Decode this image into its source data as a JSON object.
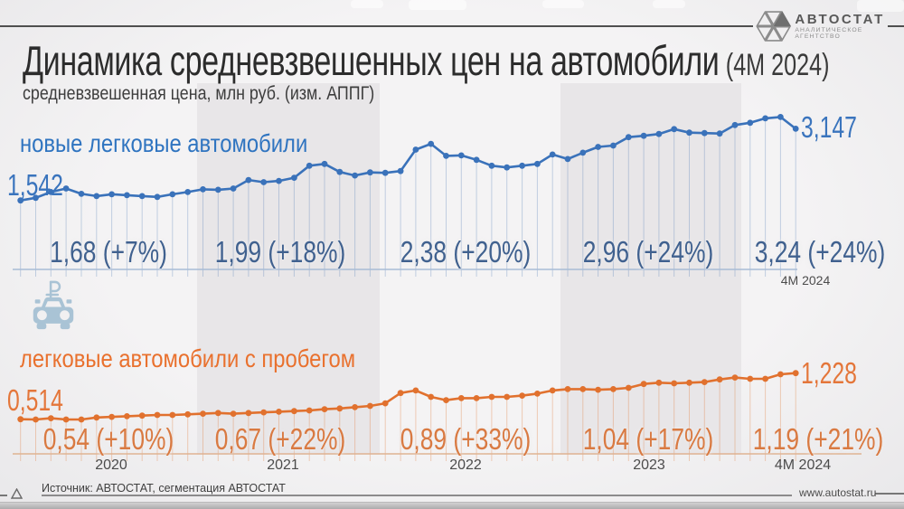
{
  "header": {
    "title": "Динамика средневзвешенных цен на автомобили",
    "title_suffix": "(4М 2024)",
    "subtitle": "средневзвешенная цена, млн руб. (изм. АППГ)",
    "logo": {
      "name": "АВТОСТАТ",
      "tagline": "АНАЛИТИЧЕСКОЕ АГЕНТСТВО"
    }
  },
  "footer": {
    "source": "Источник: АВТОСТАТ, сегментация АВТОСТАТ",
    "site": "www.autostat.ru"
  },
  "colors": {
    "new_cars": "#3a72ba",
    "used_cars": "#e1712e",
    "band": "#e8e6e8",
    "background": "#f1f0f1",
    "car_icon": "#a9c3d5"
  },
  "icons": {
    "logo_mark": "avtostat-triangle-pinwheel",
    "car_ruble": "car-with-ruble-sign"
  },
  "x_axis": {
    "tick_labels": [
      "2020",
      "2021",
      "2022",
      "2023",
      "4М 2024"
    ]
  },
  "chart_data": [
    {
      "type": "line",
      "series_name": "новые легковые автомобили",
      "x_unit": "month",
      "x_range": "Jan 2020 – Apr 2024",
      "ylabel": "млн руб.",
      "ylim": [
        1.4,
        3.5
      ],
      "grid": false,
      "start_label": "1,542",
      "end_label": "3,147",
      "end_axis_label": "4М 2024",
      "values": [
        1.542,
        1.6,
        1.73,
        1.81,
        1.69,
        1.64,
        1.68,
        1.66,
        1.64,
        1.62,
        1.68,
        1.73,
        1.79,
        1.78,
        1.81,
        2.0,
        1.95,
        1.98,
        2.05,
        2.32,
        2.36,
        2.18,
        2.1,
        2.17,
        2.16,
        2.2,
        2.68,
        2.81,
        2.54,
        2.55,
        2.45,
        2.32,
        2.28,
        2.32,
        2.36,
        2.57,
        2.47,
        2.61,
        2.74,
        2.77,
        2.96,
        2.99,
        3.03,
        3.14,
        3.06,
        3.05,
        3.04,
        3.23,
        3.28,
        3.38,
        3.41,
        3.147
      ],
      "year_averages": [
        {
          "period": "2020",
          "label": "1,68 (+7%)"
        },
        {
          "period": "2021",
          "label": "1,99 (+18%)"
        },
        {
          "period": "2022",
          "label": "2,38 (+20%)"
        },
        {
          "period": "2023",
          "label": "2,96 (+24%)"
        },
        {
          "period": "4М 2024",
          "label": "3,24 (+24%)"
        }
      ]
    },
    {
      "type": "line",
      "series_name": "легковые автомобили с пробегом",
      "x_unit": "month",
      "x_range": "Jan 2020 – Apr 2024",
      "ylabel": "млн руб.",
      "ylim": [
        0.45,
        1.3
      ],
      "grid": false,
      "start_label": "0,514",
      "end_label": "1,228",
      "values": [
        0.514,
        0.51,
        0.53,
        0.51,
        0.51,
        0.54,
        0.55,
        0.56,
        0.57,
        0.58,
        0.58,
        0.59,
        0.6,
        0.61,
        0.6,
        0.61,
        0.62,
        0.63,
        0.64,
        0.65,
        0.67,
        0.68,
        0.7,
        0.72,
        0.76,
        0.92,
        0.96,
        0.86,
        0.81,
        0.84,
        0.84,
        0.86,
        0.86,
        0.88,
        0.91,
        0.96,
        0.98,
        0.98,
        0.97,
        0.98,
        1.0,
        1.06,
        1.08,
        1.07,
        1.08,
        1.09,
        1.13,
        1.16,
        1.14,
        1.14,
        1.21,
        1.228
      ],
      "year_averages": [
        {
          "period": "2020",
          "label": "0,54 (+10%)"
        },
        {
          "period": "2021",
          "label": "0,67 (+22%)"
        },
        {
          "period": "2022",
          "label": "0,89 (+33%)"
        },
        {
          "period": "2023",
          "label": "1,04 (+17%)"
        },
        {
          "period": "4М 2024",
          "label": "1,19 (+21%)"
        }
      ]
    }
  ]
}
